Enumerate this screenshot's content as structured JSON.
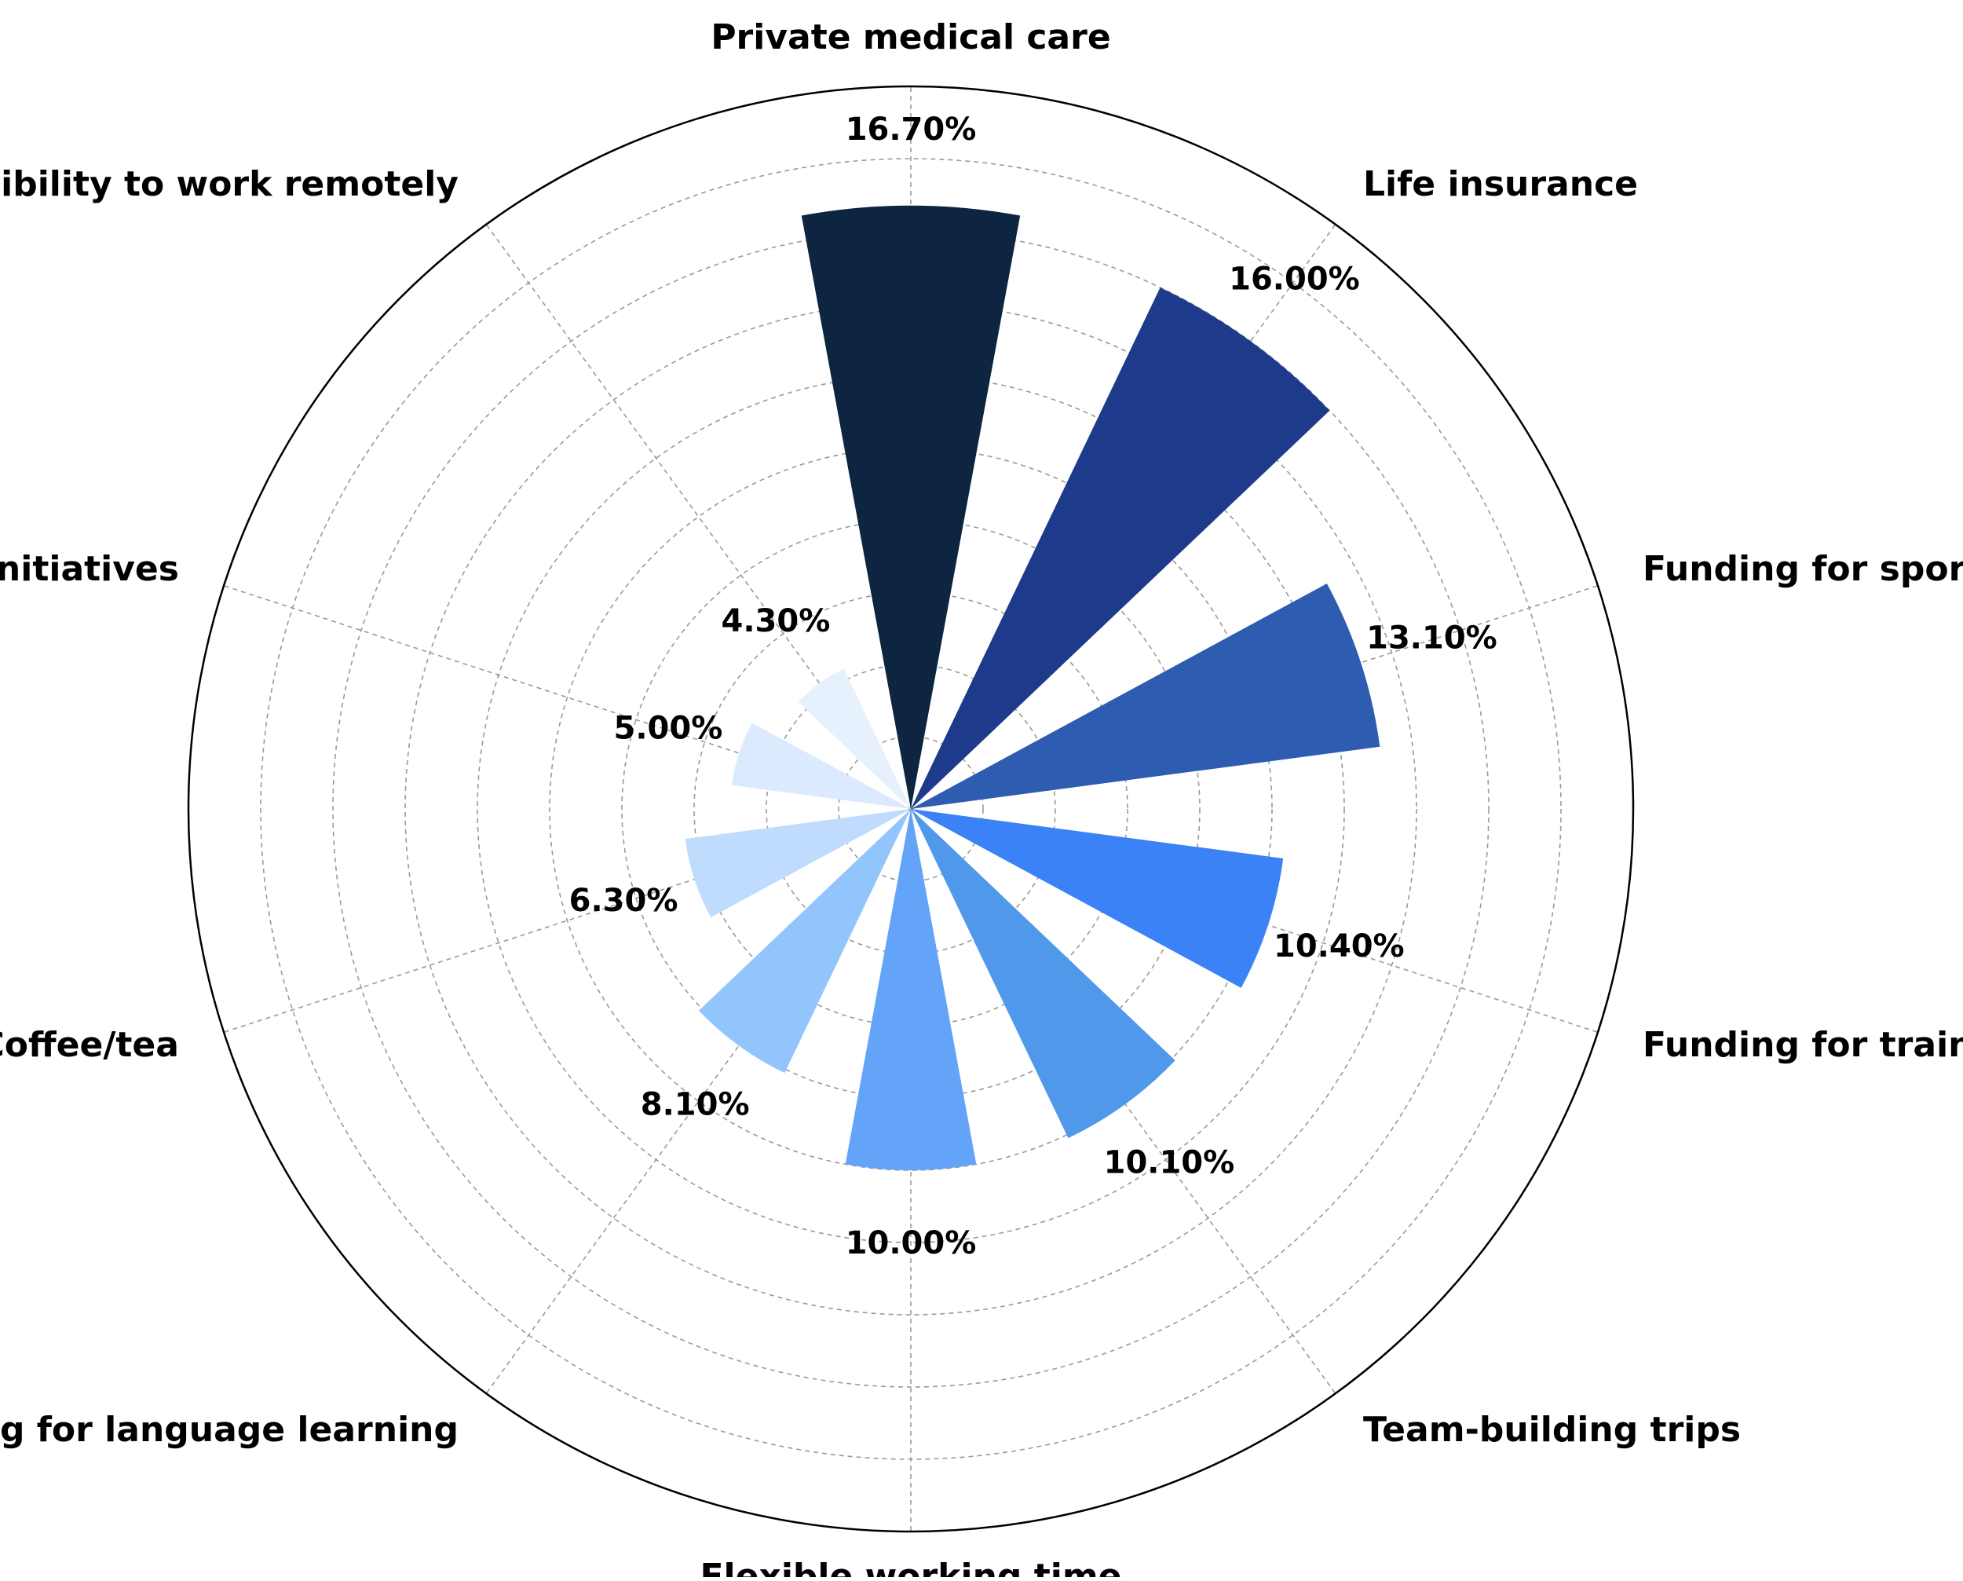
{
  "chart_data": {
    "type": "polar-bar",
    "title": "",
    "value_unit": "%",
    "rlim": [
      0,
      20
    ],
    "radial_grid": [
      2,
      4,
      6,
      8,
      10,
      12,
      14,
      16,
      18
    ],
    "grid": true,
    "start_angle": "top",
    "direction": "clockwise",
    "categories": [
      "Private medical care",
      "Life insurance",
      "Funding for sports activities",
      "Funding for training and courses",
      "Team-building trips",
      "Flexible working time",
      "Funding for language learning",
      "Coffee/tea",
      "Charity initiatives",
      "Possibility to work remotely"
    ],
    "values": [
      16.7,
      16.0,
      13.1,
      10.4,
      10.1,
      10.0,
      8.1,
      6.3,
      5.0,
      4.3
    ],
    "value_labels": [
      "16.70%",
      "16.00%",
      "13.10%",
      "10.40%",
      "10.10%",
      "10.00%",
      "8.10%",
      "6.30%",
      "5.00%",
      "4.30%"
    ],
    "colors": [
      "#0d2540",
      "#1e3a8a",
      "#2d5cb1",
      "#3b82f6",
      "#4f98ea",
      "#63a4f8",
      "#93c5fd",
      "#bfdbfe",
      "#dbeafe",
      "#e6f1fd"
    ]
  }
}
